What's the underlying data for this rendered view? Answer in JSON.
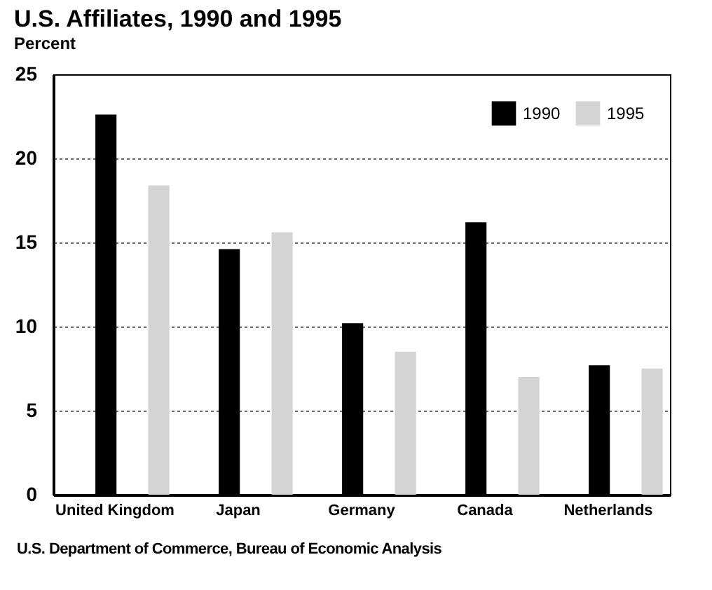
{
  "chart_data": {
    "type": "bar",
    "title": "U.S. Affiliates, 1990 and 1995",
    "ylabel": "Percent",
    "categories": [
      "United Kingdom",
      "Japan",
      "Germany",
      "Canada",
      "Netherlands"
    ],
    "series": [
      {
        "name": "1990",
        "color": "#000000",
        "values": [
          22.6,
          14.6,
          10.2,
          16.2,
          7.7
        ]
      },
      {
        "name": "1995",
        "color": "#d4d4d4",
        "values": [
          18.4,
          15.6,
          8.5,
          7.0,
          7.5
        ]
      }
    ],
    "ylim": [
      0,
      25
    ],
    "yticks": [
      0,
      5,
      10,
      15,
      20,
      25
    ],
    "grid": "y",
    "legend": "top right",
    "annotations": [
      "U.S. Department of Commerce, Bureau of Economic Analysis"
    ]
  }
}
